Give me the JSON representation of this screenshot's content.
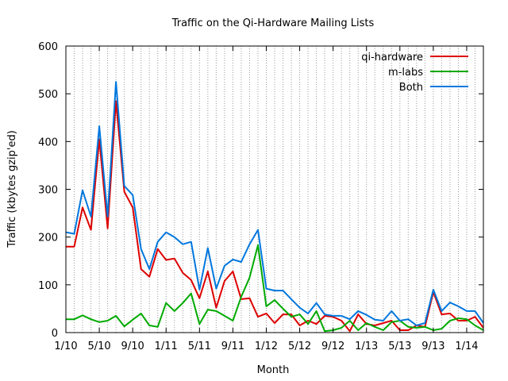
{
  "chart_data": {
    "type": "line",
    "title": "Traffic on the Qi-Hardware Mailing Lists",
    "xlabel": "Month",
    "ylabel": "Traffic (kbytes gzip'ed)",
    "ylim": [
      0,
      600
    ],
    "yticks": [
      0,
      100,
      200,
      300,
      400,
      500,
      600
    ],
    "xlim": [
      0,
      50
    ],
    "x_ticks": [
      {
        "x": 0,
        "label": "1/10"
      },
      {
        "x": 4,
        "label": "5/10"
      },
      {
        "x": 8,
        "label": "9/10"
      },
      {
        "x": 12,
        "label": "1/11"
      },
      {
        "x": 16,
        "label": "5/11"
      },
      {
        "x": 20,
        "label": "9/11"
      },
      {
        "x": 24,
        "label": "1/12"
      },
      {
        "x": 28,
        "label": "5/12"
      },
      {
        "x": 32,
        "label": "9/12"
      },
      {
        "x": 36,
        "label": "1/13"
      },
      {
        "x": 40,
        "label": "5/13"
      },
      {
        "x": 44,
        "label": "9/13"
      },
      {
        "x": 48,
        "label": "1/14"
      }
    ],
    "grid": "vertical dotted lines at each month",
    "legend_position": "top-right",
    "series": [
      {
        "name": "qi-hardware",
        "color": "#dd0000",
        "values": [
          180,
          180,
          262,
          215,
          405,
          218,
          485,
          295,
          262,
          133,
          117,
          175,
          152,
          155,
          125,
          110,
          72,
          128,
          52,
          108,
          128,
          70,
          72,
          33,
          40,
          20,
          38,
          38,
          15,
          25,
          18,
          35,
          33,
          25,
          3,
          38,
          18,
          15,
          20,
          25,
          5,
          5,
          15,
          12,
          85,
          38,
          40,
          25,
          25,
          33,
          10
        ]
      },
      {
        "name": "m-labs",
        "color": "#00aa00",
        "values": [
          28,
          28,
          36,
          28,
          22,
          25,
          35,
          13,
          27,
          40,
          15,
          12,
          62,
          45,
          62,
          82,
          18,
          48,
          45,
          35,
          25,
          75,
          115,
          183,
          55,
          68,
          50,
          33,
          38,
          18,
          45,
          3,
          5,
          10,
          25,
          5,
          20,
          12,
          5,
          22,
          25,
          12,
          10,
          12,
          5,
          8,
          25,
          30,
          28,
          15,
          5
        ]
      },
      {
        "name": "Both",
        "color": "#0077dd",
        "values": [
          210,
          207,
          298,
          243,
          432,
          243,
          525,
          307,
          288,
          175,
          133,
          190,
          210,
          200,
          185,
          190,
          90,
          177,
          92,
          140,
          153,
          148,
          185,
          215,
          92,
          88,
          88,
          70,
          52,
          40,
          62,
          38,
          35,
          35,
          28,
          45,
          37,
          27,
          25,
          45,
          25,
          28,
          15,
          20,
          90,
          45,
          63,
          55,
          45,
          45,
          20
        ]
      }
    ]
  }
}
